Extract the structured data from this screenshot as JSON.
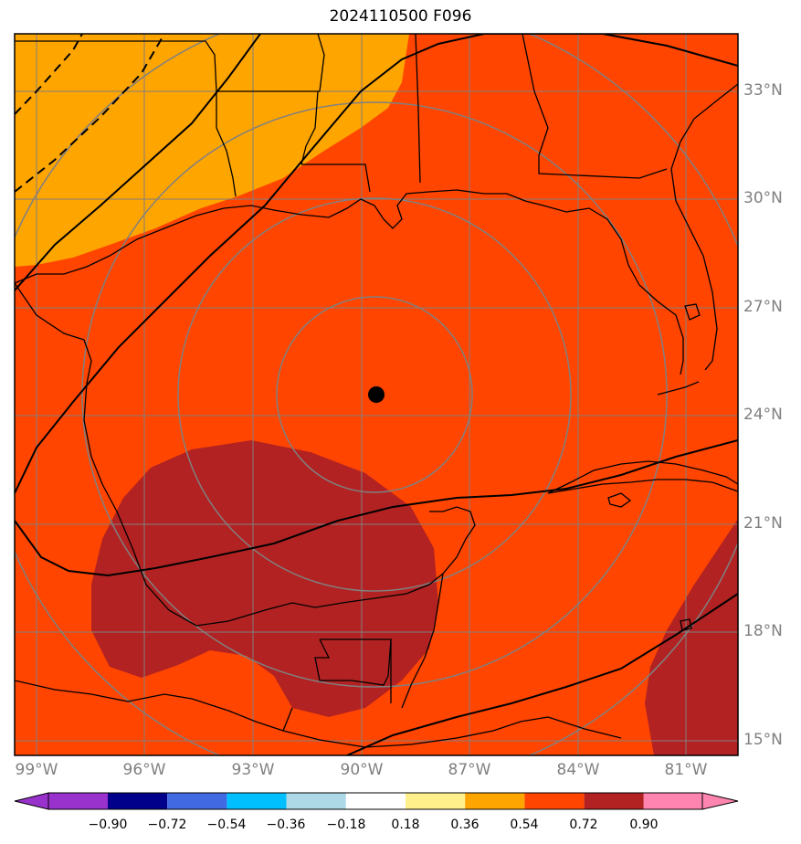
{
  "title": "2024110500 F096",
  "map": {
    "center_marker": "storm-center-dot",
    "lat_labels": [
      "33°N",
      "30°N",
      "27°N",
      "24°N",
      "21°N",
      "18°N",
      "15°N"
    ],
    "lon_labels": [
      "99°W",
      "96°W",
      "93°W",
      "90°W",
      "87°W",
      "84°W",
      "81°W"
    ],
    "fill_colors": {
      "band_0_36_0_54": "#ffa500",
      "band_0_54_0_72": "#ff4500",
      "band_0_72_0_90": "#b22222"
    },
    "coast_color": "#000000",
    "grid_color": "#808080"
  },
  "colorbar": {
    "ticks": [
      "−0.90",
      "−0.72",
      "−0.54",
      "−0.36",
      "−0.18",
      "0.18",
      "0.36",
      "0.54",
      "0.72",
      "0.90"
    ],
    "colors": [
      "#9932cc",
      "#00008b",
      "#4169e1",
      "#00bfff",
      "#add8e6",
      "#ffffff",
      "#fff08c",
      "#ffa500",
      "#ff4500",
      "#b22222",
      "#ff85b0"
    ]
  }
}
